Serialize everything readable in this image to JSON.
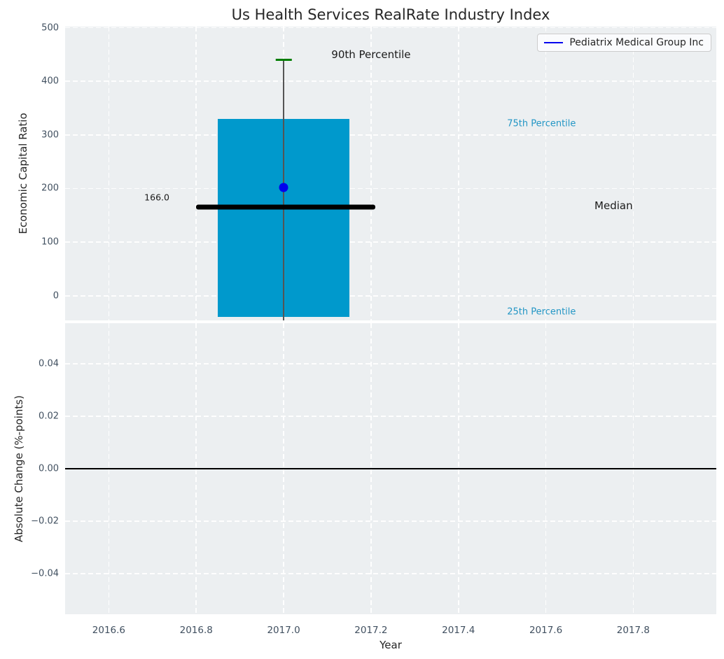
{
  "title": "Us Health Services RealRate Industry Index",
  "legend": {
    "label": "Pediatrix Medical Group Inc",
    "line_color": "#0000ee",
    "position": "upper right"
  },
  "colors": {
    "figure_background": "#ffffff",
    "axes_background": "#eceff1",
    "grid": "#ffffff",
    "bar": "#0099cc",
    "median_line": "#000000",
    "point": "#0000ee",
    "p90_cap": "#007d00",
    "whisker": "#555555",
    "percentile_text": "#2396c5",
    "tick_text": "#415060",
    "zero_line": "#000000"
  },
  "chart_data": [
    {
      "type": "bar",
      "title": "Us Health Services RealRate Industry Index",
      "ylabel": "Economic Capital Ratio",
      "xlabel": "",
      "xlim": [
        2016.5,
        2017.99
      ],
      "ylim": [
        -46,
        502
      ],
      "yticks": [
        0,
        100,
        200,
        300,
        400,
        500
      ],
      "ytick_labels": [
        "0",
        "100",
        "200",
        "300",
        "400",
        "500"
      ],
      "xticks": [
        2016.6,
        2016.8,
        2017.0,
        2017.2,
        2017.4,
        2017.6,
        2017.8
      ],
      "grid": true,
      "legend_entries": [
        "Pediatrix Medical Group Inc"
      ],
      "box": {
        "x_center": 2017.0,
        "bar_x0": 2016.85,
        "bar_x1": 2017.15,
        "p25": -40,
        "p75": 330,
        "p90": 440,
        "p90_cap_halfwidth": 0.018,
        "median": 166.0,
        "median_x0": 2016.8,
        "median_x1": 2017.21,
        "whisker_bottom": -46
      },
      "series": [
        {
          "name": "Pediatrix Medical Group Inc",
          "x": [
            2017.0
          ],
          "y": [
            202
          ],
          "color": "#0000ee"
        }
      ],
      "annotations": [
        {
          "text": "90th Percentile",
          "x": 2017.2,
          "y": 450,
          "color": "#1a1a1a",
          "size": 15
        },
        {
          "text": "75th Percentile",
          "x": 2017.59,
          "y": 320,
          "color": "#2396c5",
          "size": 13
        },
        {
          "text": "Median",
          "x": 2017.755,
          "y": 168,
          "color": "#1a1a1a",
          "size": 15
        },
        {
          "text": "25th Percentile",
          "x": 2017.59,
          "y": -30,
          "color": "#2396c5",
          "size": 13
        },
        {
          "text": "166.0",
          "x": 2016.71,
          "y": 184,
          "color": "#1a1a1a",
          "size": 12.5
        }
      ]
    },
    {
      "type": "line",
      "ylabel": "Absolute Change (%-points)",
      "xlabel": "Year",
      "xlim": [
        2016.5,
        2017.99
      ],
      "ylim": [
        -0.0555,
        0.0555
      ],
      "yticks": [
        0.04,
        0.02,
        0.0,
        -0.02,
        -0.04
      ],
      "ytick_labels": [
        "0.04",
        "0.02",
        "0.00",
        "−0.02",
        "−0.04"
      ],
      "xticks": [
        2016.6,
        2016.8,
        2017.0,
        2017.2,
        2017.4,
        2017.6,
        2017.8
      ],
      "xtick_labels": [
        "2016.6",
        "2016.8",
        "2017.0",
        "2017.2",
        "2017.4",
        "2017.6",
        "2017.8"
      ],
      "grid": true,
      "zero_line": 0.0,
      "series": []
    }
  ]
}
